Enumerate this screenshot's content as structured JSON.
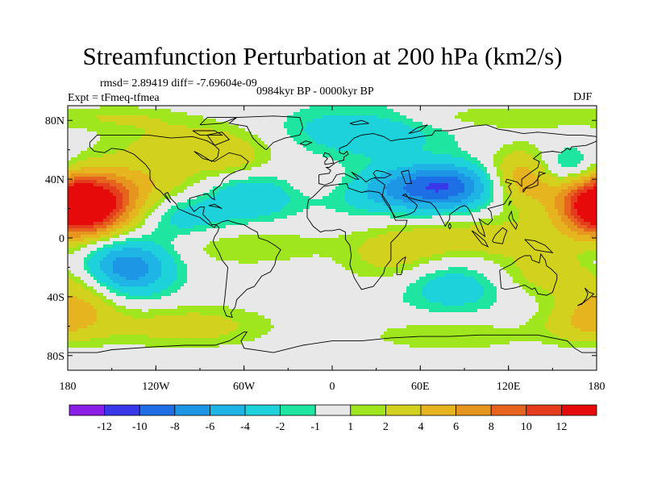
{
  "chart_data": {
    "type": "heatmap",
    "title": "Streamfunction Perturbation at 200 hPa (km2/s)",
    "stats_text": "rmsd= 2.89419 diff= -7.69604e-09",
    "experiment_text": "Expt = tFmeq-tfmea",
    "period_text": "0984kyr BP - 0000kyr BP",
    "season": "DJF",
    "x_axis": {
      "range": [
        -180,
        180
      ],
      "ticks": [
        -180,
        -120,
        -60,
        0,
        60,
        120,
        180
      ],
      "tick_labels": [
        "180",
        "120W",
        "60W",
        "0",
        "60E",
        "120E",
        "180"
      ]
    },
    "y_axis": {
      "range": [
        -90,
        90
      ],
      "ticks": [
        80,
        40,
        0,
        -40,
        -80
      ],
      "tick_labels": [
        "80N",
        "40N",
        "0",
        "40S",
        "80S"
      ]
    },
    "colorbar": {
      "boundary_labels": [
        "-12",
        "-10",
        "-8",
        "-6",
        "-4",
        "-2",
        "-1",
        "1",
        "2",
        "4",
        "6",
        "8",
        "10",
        "12"
      ],
      "colors": [
        "#8a1ee6",
        "#3838e8",
        "#1e6ee6",
        "#1e96e6",
        "#1eb4e6",
        "#1ed2dc",
        "#1ee6a0",
        "#e8e8e8",
        "#a0e61e",
        "#d2d21e",
        "#e6b41e",
        "#e6961e",
        "#e6641e",
        "#e63c1e",
        "#e60a0a"
      ]
    },
    "field_features": [
      {
        "lon": -163,
        "lat": 22,
        "amp": 13,
        "sx": 22,
        "sy": 14
      },
      {
        "lon": -140,
        "lat": -20,
        "amp": -8,
        "sx": 22,
        "sy": 14
      },
      {
        "lon": -125,
        "lat": 40,
        "amp": 3,
        "sx": 30,
        "sy": 12
      },
      {
        "lon": -100,
        "lat": 14,
        "amp": -3,
        "sx": 22,
        "sy": 10
      },
      {
        "lon": -55,
        "lat": 28,
        "amp": -4,
        "sx": 22,
        "sy": 12
      },
      {
        "lon": -90,
        "lat": 65,
        "amp": 3,
        "sx": 40,
        "sy": 10
      },
      {
        "lon": -65,
        "lat": 50,
        "amp": 2,
        "sx": 18,
        "sy": 8
      },
      {
        "lon": 20,
        "lat": 73,
        "amp": -4,
        "sx": 40,
        "sy": 12
      },
      {
        "lon": 110,
        "lat": 82,
        "amp": 2,
        "sx": 60,
        "sy": 6
      },
      {
        "lon": 78,
        "lat": 35,
        "amp": -9,
        "sx": 25,
        "sy": 11
      },
      {
        "lon": 35,
        "lat": 32,
        "amp": -4,
        "sx": 28,
        "sy": 12
      },
      {
        "lon": 130,
        "lat": 40,
        "amp": 6,
        "sx": 18,
        "sy": 14
      },
      {
        "lon": 178,
        "lat": 22,
        "amp": 9,
        "sx": 18,
        "sy": 14
      },
      {
        "lon": 160,
        "lat": 48,
        "amp": -4,
        "sx": 15,
        "sy": 10
      },
      {
        "lon": 100,
        "lat": 0,
        "amp": 3,
        "sx": 40,
        "sy": 10
      },
      {
        "lon": 45,
        "lat": -15,
        "amp": 3,
        "sx": 25,
        "sy": 15
      },
      {
        "lon": 82,
        "lat": -32,
        "amp": -4,
        "sx": 30,
        "sy": 13
      },
      {
        "lon": 140,
        "lat": -25,
        "amp": 3,
        "sx": 30,
        "sy": 12
      },
      {
        "lon": -170,
        "lat": -42,
        "amp": 4,
        "sx": 20,
        "sy": 15
      },
      {
        "lon": -60,
        "lat": -5,
        "amp": 2,
        "sx": 40,
        "sy": 10
      },
      {
        "lon": -5,
        "lat": 38,
        "amp": 1.5,
        "sx": 20,
        "sy": 8
      },
      {
        "lon": -100,
        "lat": -60,
        "amp": 3,
        "sx": 40,
        "sy": 10
      },
      {
        "lon": 80,
        "lat": -66,
        "amp": 2,
        "sx": 40,
        "sy": 8
      },
      {
        "lon": 170,
        "lat": -58,
        "amp": 3,
        "sx": 20,
        "sy": 10
      },
      {
        "lon": -140,
        "lat": 82,
        "amp": 1.5,
        "sx": 30,
        "sy": 6
      }
    ]
  }
}
